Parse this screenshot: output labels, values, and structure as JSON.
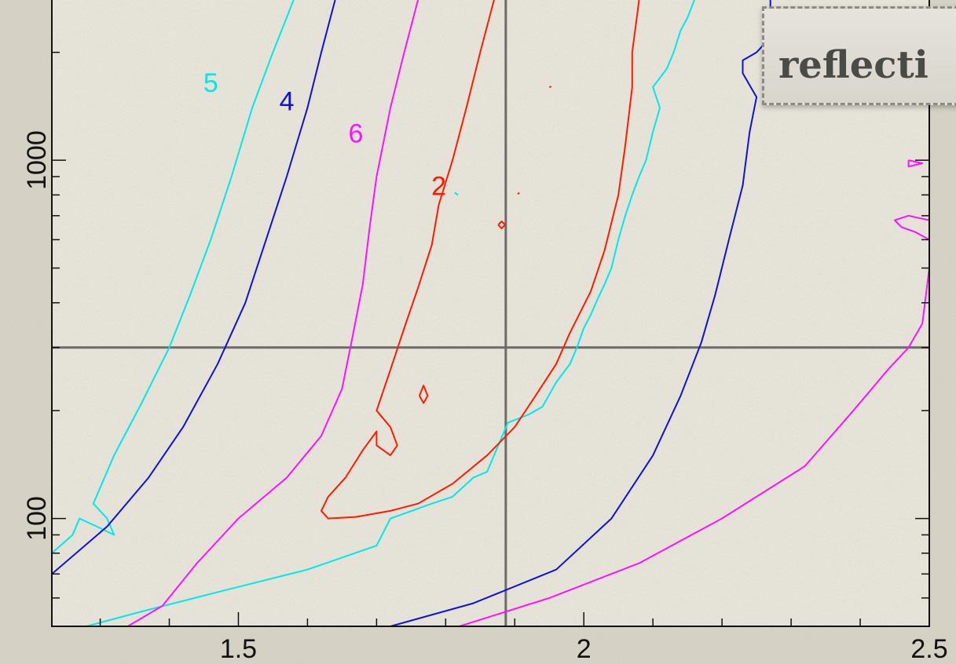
{
  "title_card": {
    "text": "reflecti"
  },
  "chart_data": {
    "type": "contour",
    "x_axis": {
      "scale": "linear",
      "range": [
        1.23,
        2.5
      ],
      "tick_labels": [
        "1.5",
        "2",
        "2.5"
      ],
      "major": [
        1.5,
        2,
        2.5
      ],
      "minor_step": 0.1
    },
    "y_axis": {
      "scale": "log",
      "range": [
        50,
        2800
      ],
      "tick_labels": [
        "100",
        "1000"
      ],
      "major": [
        100,
        1000
      ]
    },
    "crosshair": {
      "x": 1.887,
      "y": 300
    },
    "colors": {
      "2": "#ff1a00",
      "4": "#1010d8",
      "5": "#00e8ec",
      "6": "#ff10ff",
      "axes": "#111111",
      "crosshair": "#6b6b6b"
    },
    "contour_labels": [
      {
        "text": "5",
        "x": 1.46,
        "y": 1550,
        "color": "#00e8ec"
      },
      {
        "text": "4",
        "x": 1.57,
        "y": 1380,
        "color": "#1010d8"
      },
      {
        "text": "6",
        "x": 1.67,
        "y": 1120,
        "color": "#ff10ff"
      },
      {
        "text": "2",
        "x": 1.79,
        "y": 800,
        "color": "#ff1a00"
      }
    ],
    "series": [
      {
        "level": "5",
        "color": "#00e8ec",
        "points": [
          [
            1.58,
            2800
          ],
          [
            1.55,
            2000
          ],
          [
            1.52,
            1400
          ],
          [
            1.49,
            900
          ],
          [
            1.46,
            600
          ],
          [
            1.43,
            420
          ],
          [
            1.4,
            300
          ],
          [
            1.36,
            210
          ],
          [
            1.32,
            150
          ],
          [
            1.29,
            110
          ],
          [
            1.31,
            100
          ],
          [
            1.32,
            90
          ],
          [
            1.3,
            94
          ],
          [
            1.27,
            100
          ],
          [
            1.26,
            90
          ],
          [
            1.23,
            80
          ]
        ]
      },
      {
        "level": "5",
        "color": "#00e8ec",
        "points": [
          [
            1.28,
            50
          ],
          [
            1.36,
            55
          ],
          [
            1.48,
            63
          ],
          [
            1.6,
            72
          ],
          [
            1.7,
            84
          ],
          [
            1.72,
            100
          ],
          [
            1.78,
            110
          ],
          [
            1.81,
            115
          ],
          [
            1.84,
            130
          ],
          [
            1.86,
            135
          ],
          [
            1.87,
            150
          ],
          [
            1.89,
            185
          ],
          [
            1.92,
            195
          ],
          [
            1.94,
            205
          ],
          [
            1.96,
            240
          ],
          [
            1.98,
            270
          ],
          [
            1.99,
            300
          ],
          [
            2.0,
            340
          ],
          [
            2.01,
            370
          ],
          [
            2.02,
            410
          ],
          [
            2.03,
            450
          ],
          [
            2.04,
            500
          ],
          [
            2.05,
            600
          ],
          [
            2.06,
            700
          ],
          [
            2.07,
            800
          ],
          [
            2.08,
            900
          ],
          [
            2.09,
            1000
          ],
          [
            2.1,
            1200
          ],
          [
            2.11,
            1400
          ],
          [
            2.1,
            1600
          ],
          [
            2.12,
            1800
          ],
          [
            2.13,
            2000
          ],
          [
            2.14,
            2300
          ],
          [
            2.15,
            2500
          ],
          [
            2.16,
            2800
          ]
        ]
      },
      {
        "level": "5",
        "color": "#00e8ec",
        "points": [
          [
            1.813,
            812
          ],
          [
            1.818,
            800
          ]
        ]
      },
      {
        "level": "4",
        "color": "#1010d8",
        "points": [
          [
            1.64,
            2800
          ],
          [
            1.62,
            2000
          ],
          [
            1.6,
            1400
          ],
          [
            1.57,
            900
          ],
          [
            1.54,
            600
          ],
          [
            1.51,
            400
          ],
          [
            1.47,
            270
          ],
          [
            1.42,
            180
          ],
          [
            1.37,
            130
          ],
          [
            1.31,
            95
          ],
          [
            1.23,
            70
          ]
        ]
      },
      {
        "level": "4",
        "color": "#1010d8",
        "points": [
          [
            1.72,
            50
          ],
          [
            1.84,
            58
          ],
          [
            1.96,
            72
          ],
          [
            2.04,
            100
          ],
          [
            2.1,
            150
          ],
          [
            2.14,
            220
          ],
          [
            2.17,
            310
          ],
          [
            2.19,
            420
          ],
          [
            2.21,
            600
          ],
          [
            2.23,
            850
          ],
          [
            2.24,
            1200
          ],
          [
            2.25,
            1500
          ],
          [
            2.23,
            1750
          ],
          [
            2.23,
            1900
          ],
          [
            2.25,
            2000
          ],
          [
            2.27,
            2200
          ],
          [
            2.27,
            2800
          ]
        ]
      },
      {
        "level": "6",
        "color": "#ff10ff",
        "points": [
          [
            1.76,
            2800
          ],
          [
            1.74,
            2000
          ],
          [
            1.72,
            1400
          ],
          [
            1.7,
            900
          ],
          [
            1.69,
            650
          ],
          [
            1.68,
            450
          ],
          [
            1.665,
            320
          ],
          [
            1.65,
            230
          ],
          [
            1.62,
            170
          ],
          [
            1.57,
            130
          ],
          [
            1.5,
            100
          ],
          [
            1.44,
            75
          ],
          [
            1.39,
            57
          ],
          [
            1.34,
            50
          ]
        ]
      },
      {
        "level": "6",
        "color": "#ff10ff",
        "points": [
          [
            1.82,
            50
          ],
          [
            1.95,
            60
          ],
          [
            2.08,
            75
          ],
          [
            2.2,
            100
          ],
          [
            2.32,
            140
          ],
          [
            2.39,
            200
          ],
          [
            2.44,
            260
          ],
          [
            2.47,
            300
          ],
          [
            2.49,
            350
          ],
          [
            2.5,
            500
          ]
        ]
      },
      {
        "level": "6",
        "color": "#ff10ff",
        "points": [
          [
            2.47,
            1000
          ],
          [
            2.49,
            980
          ],
          [
            2.47,
            960
          ],
          [
            2.47,
            1000
          ]
        ]
      },
      {
        "level": "6",
        "color": "#ff10ff",
        "points": [
          [
            2.5,
            600
          ],
          [
            2.48,
            630
          ],
          [
            2.46,
            650
          ],
          [
            2.45,
            680
          ],
          [
            2.47,
            700
          ],
          [
            2.5,
            680
          ]
        ]
      },
      {
        "level": "2",
        "color": "#ff1a00",
        "points": [
          [
            1.87,
            2800
          ],
          [
            1.85,
            2000
          ],
          [
            1.83,
            1400
          ],
          [
            1.81,
            1000
          ],
          [
            1.79,
            750
          ],
          [
            1.78,
            580
          ],
          [
            1.76,
            440
          ],
          [
            1.74,
            340
          ],
          [
            1.72,
            260
          ],
          [
            1.7,
            200
          ],
          [
            1.72,
            180
          ],
          [
            1.73,
            160
          ],
          [
            1.72,
            150
          ],
          [
            1.7,
            160
          ],
          [
            1.7,
            175
          ],
          [
            1.68,
            155
          ],
          [
            1.655,
            130
          ],
          [
            1.63,
            115
          ],
          [
            1.62,
            105
          ],
          [
            1.63,
            100
          ],
          [
            1.67,
            101
          ],
          [
            1.72,
            105
          ],
          [
            1.76,
            110
          ],
          [
            1.81,
            125
          ],
          [
            1.86,
            150
          ],
          [
            1.9,
            180
          ],
          [
            1.93,
            220
          ],
          [
            1.96,
            270
          ],
          [
            1.98,
            330
          ],
          [
            2.01,
            430
          ],
          [
            2.03,
            560
          ],
          [
            2.05,
            800
          ],
          [
            2.06,
            1100
          ],
          [
            2.07,
            1600
          ],
          [
            2.07,
            2000
          ],
          [
            2.08,
            2800
          ]
        ]
      },
      {
        "level": "2",
        "color": "#ff1a00",
        "points": [
          [
            1.762,
            220
          ],
          [
            1.768,
            235
          ],
          [
            1.774,
            220
          ],
          [
            1.768,
            210
          ],
          [
            1.762,
            220
          ]
        ]
      },
      {
        "level": "2",
        "color": "#ff1a00",
        "points": [
          [
            1.876,
            660
          ],
          [
            1.881,
            675
          ],
          [
            1.886,
            660
          ],
          [
            1.881,
            645
          ],
          [
            1.876,
            660
          ]
        ]
      },
      {
        "level": "2",
        "color": "#ff1a00",
        "points": [
          [
            1.904,
            806
          ],
          [
            1.907,
            810
          ]
        ]
      },
      {
        "level": "2",
        "color": "#ff1a00",
        "points": [
          [
            1.95,
            1600
          ],
          [
            1.953,
            1605
          ]
        ]
      }
    ]
  }
}
